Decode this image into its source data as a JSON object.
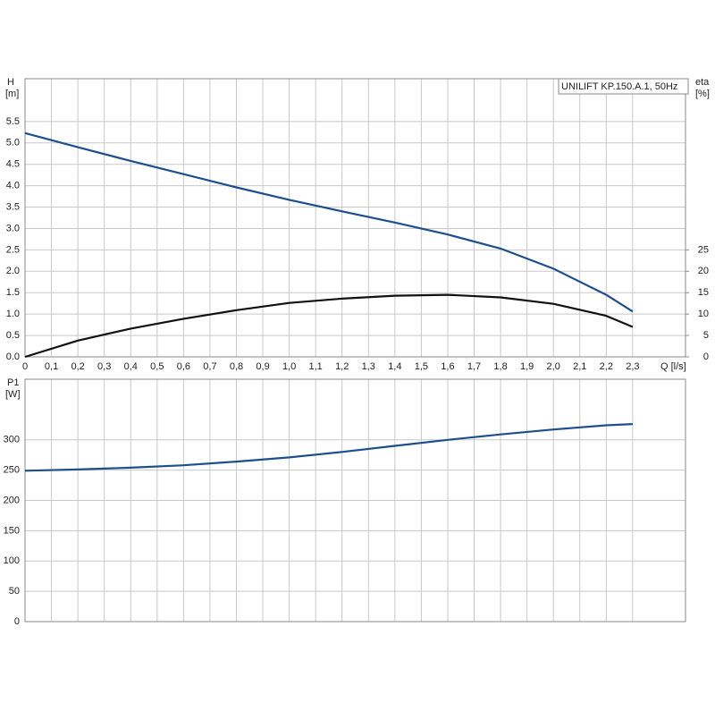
{
  "chart_data": [
    {
      "type": "line",
      "ylabel": "H",
      "yunit": "[m]",
      "y2label": "eta",
      "y2unit": "[%]",
      "xlabel": "Q [l/s]",
      "annotation": "UNILIFT KP.150.A.1, 50Hz",
      "x": [
        0,
        0.2,
        0.4,
        0.6,
        0.8,
        1.0,
        1.2,
        1.4,
        1.6,
        1.8,
        2.0,
        2.2,
        2.3
      ],
      "series": [
        {
          "color": "#1f4e8c",
          "values": [
            5.23,
            4.9,
            4.58,
            4.27,
            3.96,
            3.67,
            3.4,
            3.14,
            2.86,
            2.53,
            2.06,
            1.45,
            1.06
          ]
        },
        {
          "color": "#111111",
          "axis": "y2",
          "values": [
            0,
            3.8,
            6.6,
            8.9,
            10.9,
            12.6,
            13.6,
            14.3,
            14.5,
            13.9,
            12.4,
            9.6,
            7.0
          ]
        }
      ],
      "xlim": [
        0,
        2.5
      ],
      "xticks": [
        {
          "value": 0,
          "label": "0"
        },
        {
          "value": 0.1,
          "label": "0,1"
        },
        {
          "value": 0.2,
          "label": "0,2"
        },
        {
          "value": 0.3,
          "label": "0,3"
        },
        {
          "value": 0.4,
          "label": "0,4"
        },
        {
          "value": 0.5,
          "label": "0,5"
        },
        {
          "value": 0.6,
          "label": "0,6"
        },
        {
          "value": 0.7,
          "label": "0,7"
        },
        {
          "value": 0.8,
          "label": "0,8"
        },
        {
          "value": 0.9,
          "label": "0,9"
        },
        {
          "value": 1.0,
          "label": "1,0"
        },
        {
          "value": 1.1,
          "label": "1,1"
        },
        {
          "value": 1.2,
          "label": "1,2"
        },
        {
          "value": 1.3,
          "label": "1,3"
        },
        {
          "value": 1.4,
          "label": "1,4"
        },
        {
          "value": 1.5,
          "label": "1,5"
        },
        {
          "value": 1.6,
          "label": "1,6"
        },
        {
          "value": 1.7,
          "label": "1,7"
        },
        {
          "value": 1.8,
          "label": "1,8"
        },
        {
          "value": 1.9,
          "label": "1,9"
        },
        {
          "value": 2.0,
          "label": "2,0"
        },
        {
          "value": 2.1,
          "label": "2,1"
        },
        {
          "value": 2.2,
          "label": "2,2"
        },
        {
          "value": 2.3,
          "label": "2,3"
        }
      ],
      "ylim": [
        0,
        6.5
      ],
      "yticks": [
        {
          "value": 0,
          "label": "0.0"
        },
        0.5,
        {
          "value": 1,
          "label": "1.0"
        },
        1.5,
        {
          "value": 2,
          "label": "2.0"
        },
        2.5,
        {
          "value": 3,
          "label": "3.0"
        },
        3.5,
        {
          "value": 4,
          "label": "4.0"
        },
        4.5,
        {
          "value": 5,
          "label": "5.0"
        },
        5.5
      ],
      "y2lim": [
        0,
        65
      ],
      "y2ticks": [
        0,
        5,
        10,
        15,
        20,
        25
      ],
      "grid": true
    },
    {
      "type": "line",
      "ylabel": "P1",
      "yunit": "[W]",
      "x": [
        0,
        0.2,
        0.4,
        0.6,
        0.8,
        1.0,
        1.2,
        1.4,
        1.6,
        1.8,
        2.0,
        2.2,
        2.3
      ],
      "series": [
        {
          "color": "#1f4e8c",
          "values": [
            249,
            251,
            254,
            258,
            264,
            271,
            280,
            290,
            300,
            309,
            317,
            324,
            326
          ]
        }
      ],
      "xlim": [
        0,
        2.5
      ],
      "ylim": [
        0,
        400
      ],
      "yticks": [
        0,
        50,
        100,
        150,
        200,
        250,
        300
      ],
      "grid": true
    }
  ]
}
